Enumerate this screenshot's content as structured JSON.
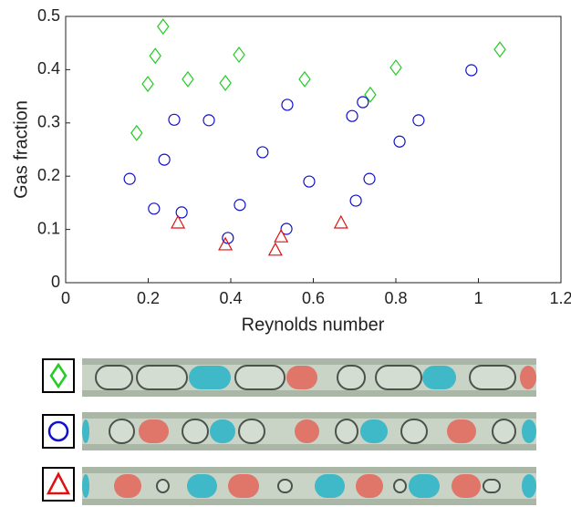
{
  "chart_data": {
    "type": "scatter",
    "xlabel": "Reynolds number",
    "ylabel": "Gas fraction",
    "xlim": [
      0,
      1.2
    ],
    "xticks": [
      0,
      0.2,
      0.4,
      0.6,
      0.8,
      1,
      1.2
    ],
    "ylim": [
      0,
      0.5
    ],
    "yticks": [
      0,
      0.1,
      0.2,
      0.3,
      0.4,
      0.5
    ],
    "grid": false,
    "series": [
      {
        "color": "#22cc22",
        "marker": "diamond",
        "x": [
          0.172,
          0.199,
          0.217,
          0.236,
          0.296,
          0.387,
          0.42,
          0.579,
          0.738,
          0.8,
          1.052
        ],
        "values": [
          0.281,
          0.373,
          0.426,
          0.481,
          0.382,
          0.375,
          0.428,
          0.382,
          0.353,
          0.404,
          0.438
        ]
      },
      {
        "color": "#1010cc",
        "marker": "circle",
        "x": [
          0.155,
          0.214,
          0.239,
          0.263,
          0.281,
          0.347,
          0.393,
          0.422,
          0.477,
          0.537,
          0.535,
          0.59,
          0.694,
          0.703,
          0.72,
          0.736,
          0.809,
          0.855,
          0.983
        ],
        "values": [
          0.195,
          0.139,
          0.231,
          0.306,
          0.132,
          0.305,
          0.084,
          0.146,
          0.245,
          0.334,
          0.101,
          0.19,
          0.313,
          0.154,
          0.339,
          0.195,
          0.265,
          0.305,
          0.399
        ]
      },
      {
        "color": "#e01010",
        "marker": "triangle",
        "x": [
          0.272,
          0.387,
          0.508,
          0.522,
          0.667
        ],
        "values": [
          0.113,
          0.072,
          0.062,
          0.087,
          0.113
        ]
      }
    ]
  }
}
